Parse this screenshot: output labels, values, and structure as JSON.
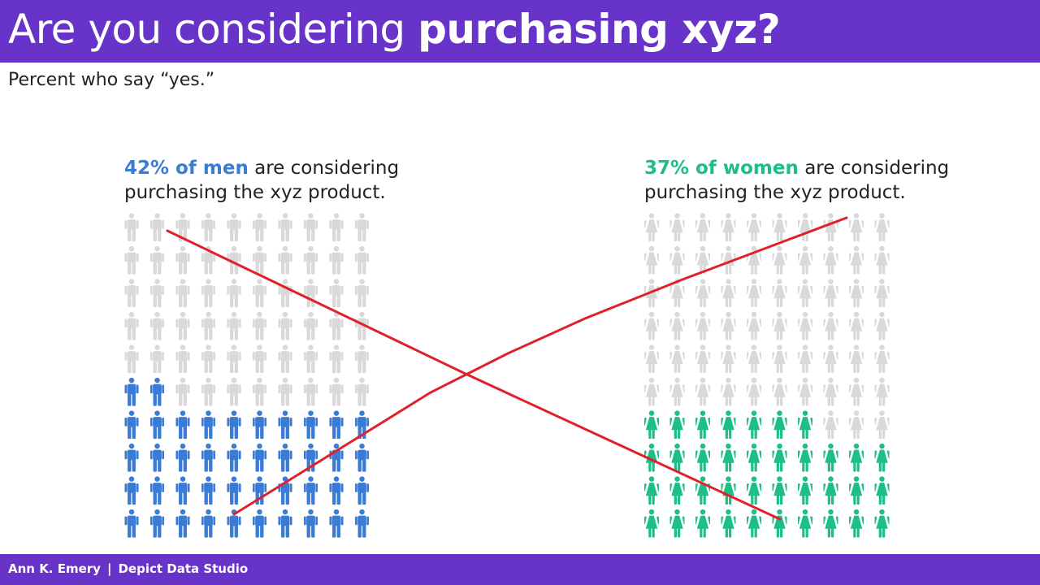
{
  "title": {
    "prefix": "Are you considering",
    "emphasis": "purchasing xyz?"
  },
  "subtitle": "Percent who say “yes.”",
  "colors": {
    "men": "#3a7bd5",
    "women": "#1dbf84",
    "empty": "#d9d9d9",
    "cross": "#e0202a",
    "brand": "#6733c9"
  },
  "chart_data": [
    {
      "type": "pictogram",
      "group": "men",
      "icon": "man-icon",
      "value": 42,
      "total": 100,
      "caption_highlight": "42% of men",
      "caption_rest": "are considering purchasing the xyz product."
    },
    {
      "type": "pictogram",
      "group": "women",
      "icon": "woman-icon",
      "value": 37,
      "total": 100,
      "caption_highlight": "37% of women",
      "caption_rest": "are considering purchasing the xyz product."
    }
  ],
  "footer": {
    "author": "Ann K. Emery",
    "separator": "|",
    "org": "Depict Data Studio"
  }
}
